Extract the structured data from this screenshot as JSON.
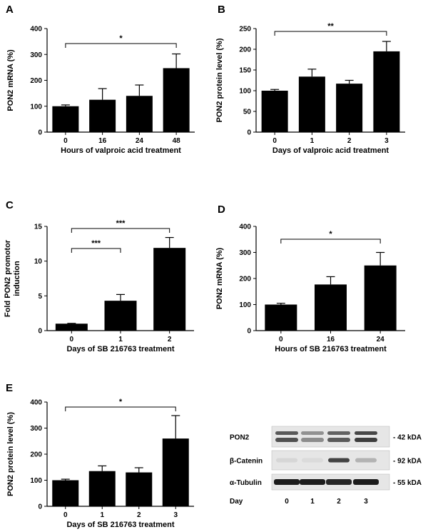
{
  "chart_data": [
    {
      "panel": "A",
      "type": "bar",
      "categories": [
        "0",
        "16",
        "24",
        "48"
      ],
      "values": [
        100,
        125,
        140,
        247
      ],
      "errors": [
        5,
        43,
        42,
        55
      ],
      "xlabel": "Hours of valproic acid treatment",
      "ylabel": "PON2 mRNA (%)",
      "ylim": [
        0,
        400
      ],
      "yticks": [
        "0",
        "100",
        "200",
        "300",
        "400"
      ],
      "significance": [
        {
          "from": 0,
          "to": 3,
          "label": "*"
        }
      ]
    },
    {
      "panel": "B",
      "type": "bar",
      "categories": [
        "0",
        "1",
        "2",
        "3"
      ],
      "values": [
        100,
        134,
        117,
        195
      ],
      "errors": [
        3,
        18,
        8,
        24
      ],
      "xlabel": "Days of valproic acid treatment",
      "ylabel": "PON2 protein level (%)",
      "ylim": [
        0,
        250
      ],
      "yticks": [
        "0",
        "50",
        "100",
        "150",
        "200",
        "250"
      ],
      "significance": [
        {
          "from": 0,
          "to": 3,
          "label": "**"
        }
      ]
    },
    {
      "panel": "C",
      "type": "bar",
      "categories": [
        "0",
        "1",
        "2"
      ],
      "values": [
        1,
        4.3,
        11.9
      ],
      "errors": [
        0.05,
        0.9,
        1.5
      ],
      "xlabel": "Days of SB 216763 treatment",
      "ylabel": "Fold PON2 promotor induction",
      "ylim": [
        0,
        15
      ],
      "yticks": [
        "0",
        "5",
        "10",
        "15"
      ],
      "significance": [
        {
          "from": 0,
          "to": 1,
          "label": "***"
        },
        {
          "from": 0,
          "to": 2,
          "label": "***"
        }
      ]
    },
    {
      "panel": "D",
      "type": "bar",
      "categories": [
        "0",
        "16",
        "24"
      ],
      "values": [
        100,
        177,
        250
      ],
      "errors": [
        5,
        30,
        50
      ],
      "xlabel": "Hours of SB 216763 treatment",
      "ylabel": "PON2 mRNA (%)",
      "ylim": [
        0,
        400
      ],
      "yticks": [
        "0",
        "100",
        "200",
        "300",
        "400"
      ],
      "significance": [
        {
          "from": 0,
          "to": 2,
          "label": "*"
        }
      ]
    },
    {
      "panel": "E",
      "type": "bar",
      "categories": [
        "0",
        "1",
        "2",
        "3"
      ],
      "values": [
        100,
        135,
        130,
        260
      ],
      "errors": [
        4,
        20,
        18,
        88
      ],
      "xlabel": "Days of SB 216763 treatment",
      "ylabel": "PON2 protein level (%)",
      "ylim": [
        0,
        400
      ],
      "yticks": [
        "0",
        "100",
        "200",
        "300",
        "400"
      ],
      "significance": [
        {
          "from": 0,
          "to": 3,
          "label": "*"
        }
      ]
    }
  ],
  "western_blot": {
    "rows": [
      {
        "name": "PON2",
        "size": "- 42 kDA",
        "intensity": [
          0.75,
          0.45,
          0.7,
          0.85
        ]
      },
      {
        "name": "β-Catenin",
        "size": "- 92 kDA",
        "intensity": [
          0.08,
          0.05,
          0.8,
          0.25
        ]
      },
      {
        "name": "α-Tubulin",
        "size": "- 55 kDA",
        "intensity": [
          0.95,
          0.95,
          0.9,
          0.95
        ]
      }
    ],
    "day_label": "Day",
    "lanes": [
      "0",
      "1",
      "2",
      "3"
    ]
  }
}
